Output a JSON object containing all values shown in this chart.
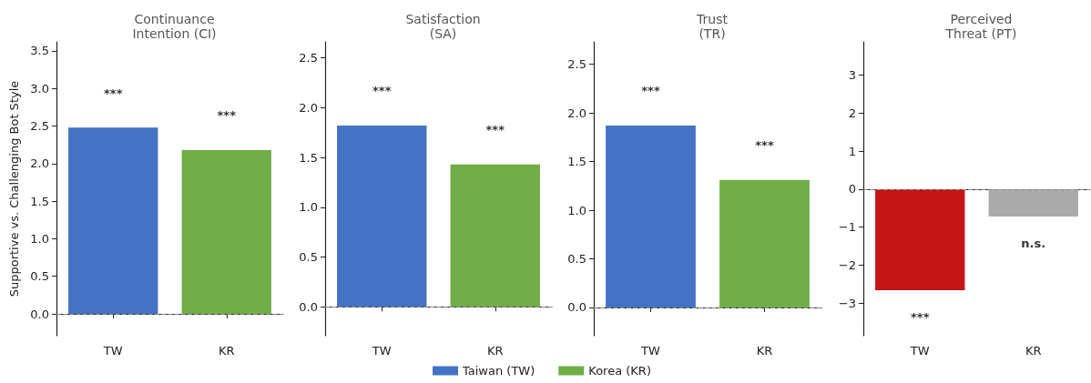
{
  "chart_data": [
    {
      "type": "bar",
      "title": "Continuance\nIntention (CI)",
      "ylabel": "Supportive vs. Challenging Bot Style",
      "categories": [
        "TW",
        "KR"
      ],
      "stacked": true,
      "series": [
        {
          "name": "Taiwan (TW)",
          "color": "#4472c4",
          "values": [
            2.48,
            null
          ]
        },
        {
          "name": "Korea (KR)",
          "color": "#70ad47",
          "values": [
            null,
            2.18
          ]
        }
      ],
      "ylim": [
        -0.29,
        3.62
      ],
      "yticks": [
        {
          "value": 0,
          "label": "0.0"
        },
        0.5,
        {
          "value": 1,
          "label": "1.0"
        },
        1.5,
        {
          "value": 2,
          "label": "2.0"
        },
        2.5,
        {
          "value": 3,
          "label": "3.0"
        },
        3.5
      ],
      "grid": false,
      "legend": "bottom",
      "ref_lines": [
        {
          "axis": "y",
          "value": 0,
          "color": "#888888",
          "line_style": "dashed"
        }
      ],
      "annotations": [
        "***",
        "***"
      ]
    },
    {
      "type": "bar",
      "title": "Satisfaction\n(SA)",
      "categories": [
        "TW",
        "KR"
      ],
      "values": [
        1.82,
        1.43
      ],
      "colors": [
        "#4472c4",
        "#70ad47"
      ],
      "ylim": [
        -0.29,
        2.66
      ],
      "yticks": [
        {
          "value": 0,
          "label": "0.0"
        },
        0.5,
        {
          "value": 1,
          "label": "1.0"
        },
        1.5,
        {
          "value": 2,
          "label": "2.0"
        },
        2.5
      ],
      "grid": false,
      "ref_lines": [
        {
          "axis": "y",
          "value": 0,
          "color": "#888888",
          "line_style": "dashed"
        }
      ],
      "annotations": [
        "***",
        "***"
      ]
    },
    {
      "type": "bar",
      "title": "Trust\n(TR)",
      "categories": [
        "TW",
        "KR"
      ],
      "values": [
        1.87,
        1.31
      ],
      "colors": [
        "#4472c4",
        "#70ad47"
      ],
      "ylim": [
        -0.29,
        2.73
      ],
      "yticks": [
        {
          "value": 0,
          "label": "0.0"
        },
        0.5,
        {
          "value": 1,
          "label": "1.0"
        },
        1.5,
        {
          "value": 2,
          "label": "2.0"
        },
        2.5
      ],
      "grid": false,
      "ref_lines": [
        {
          "axis": "y",
          "value": 0,
          "color": "#888888",
          "line_style": "dashed"
        }
      ],
      "annotations": [
        "***",
        "***"
      ]
    },
    {
      "type": "bar",
      "title": "Perceived\nThreat (PT)",
      "categories": [
        "TW",
        "KR"
      ],
      "values": [
        -2.66,
        -0.72
      ],
      "colors": [
        "#c41414",
        "#aaaaaa"
      ],
      "ylim": [
        -3.86,
        3.88
      ],
      "yticks": [
        -3,
        -2,
        -1,
        0,
        1,
        2,
        3
      ],
      "grid": false,
      "ref_lines": [
        {
          "axis": "y",
          "value": 0,
          "color": "#888888",
          "line_style": "dashed"
        }
      ],
      "annotations": [
        "***",
        "n.s."
      ]
    }
  ]
}
